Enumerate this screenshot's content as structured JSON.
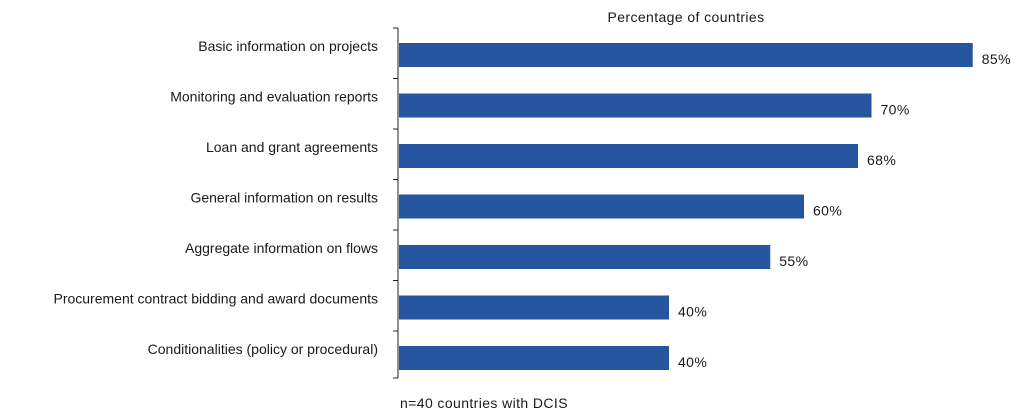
{
  "chart_data": {
    "type": "bar",
    "orientation": "horizontal",
    "title": "Percentage of countries",
    "note": "n=40 countries with DCIS",
    "categories": [
      "Basic information on projects",
      "Monitoring and evaluation reports",
      "Loan and grant agreements",
      "General information on results",
      "Aggregate information on flows",
      "Procurement contract bidding and award documents",
      "Conditionalities (policy or procedural)"
    ],
    "values": [
      85,
      70,
      68,
      60,
      55,
      40,
      40
    ],
    "value_labels": [
      "85%",
      "70%",
      "68%",
      "60%",
      "55%",
      "40%",
      "40%"
    ],
    "xlim": [
      0,
      100
    ],
    "grid": false,
    "legend": "none",
    "bar_color": "#2756a1"
  }
}
